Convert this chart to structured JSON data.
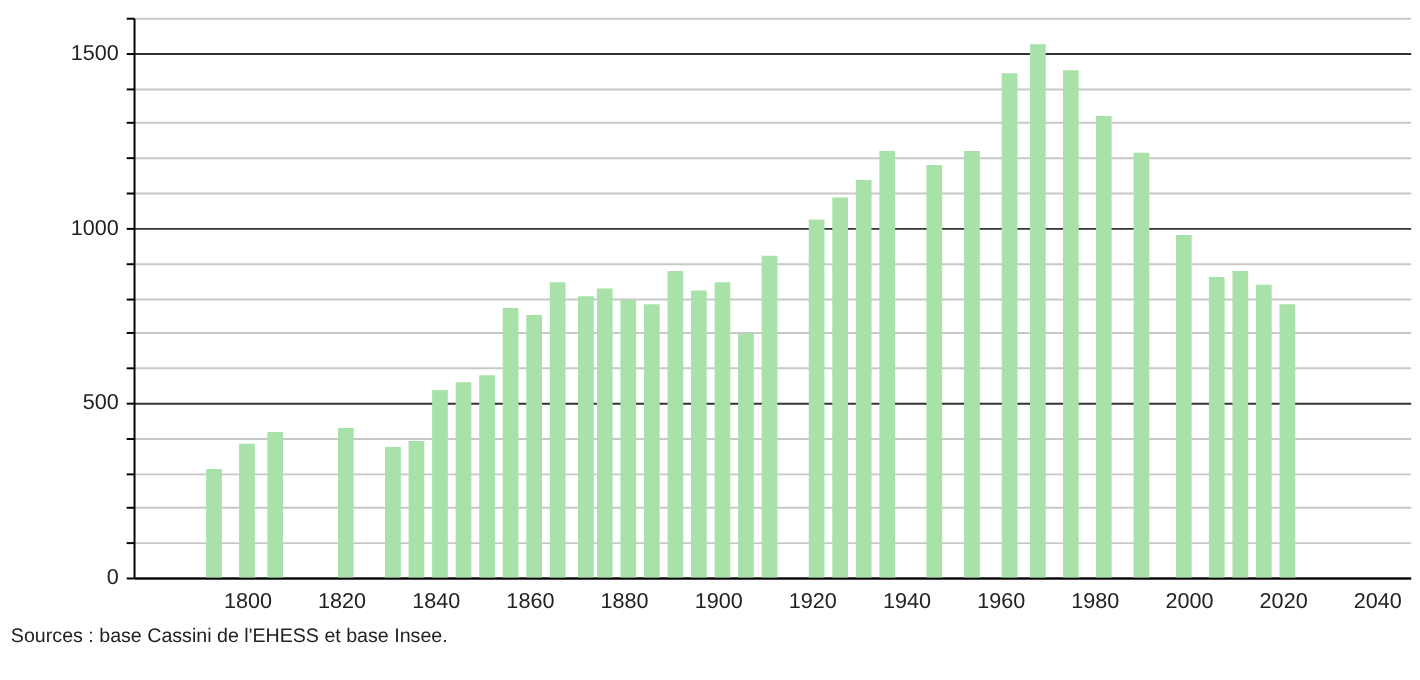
{
  "chart_data": {
    "type": "bar",
    "color": "#a8e2a8",
    "x": [
      1793,
      1800,
      1806,
      1821,
      1831,
      1836,
      1841,
      1846,
      1851,
      1856,
      1861,
      1866,
      1872,
      1876,
      1881,
      1886,
      1891,
      1896,
      1901,
      1906,
      1911,
      1921,
      1926,
      1931,
      1936,
      1946,
      1954,
      1962,
      1968,
      1975,
      1982,
      1990,
      1999,
      2006,
      2011,
      2016,
      2021
    ],
    "values": [
      310,
      382,
      416,
      427,
      373,
      390,
      536,
      558,
      578,
      770,
      750,
      844,
      804,
      826,
      793,
      781,
      876,
      820,
      844,
      698,
      920,
      1023,
      1086,
      1136,
      1219,
      1179,
      1219,
      1441,
      1524,
      1450,
      1319,
      1214,
      979,
      859,
      876,
      837,
      781
    ],
    "xlim": [
      1778,
      2045
    ],
    "xticks": [
      1800,
      1820,
      1840,
      1860,
      1880,
      1900,
      1920,
      1940,
      1960,
      1980,
      2000,
      2020,
      2040
    ],
    "ylim": [
      0,
      1600
    ],
    "yticks": [
      0,
      {
        "value": 100,
        "label": null
      },
      {
        "value": 200,
        "label": null
      },
      {
        "value": 300,
        "label": null
      },
      {
        "value": 400,
        "label": null
      },
      500,
      {
        "value": 600,
        "label": null
      },
      {
        "value": 700,
        "label": null
      },
      {
        "value": 800,
        "label": null
      },
      {
        "value": 900,
        "label": null
      },
      1000,
      {
        "value": 1100,
        "label": null
      },
      {
        "value": 1200,
        "label": null
      },
      {
        "value": 1300,
        "label": null
      },
      {
        "value": 1400,
        "label": null
      },
      1500,
      {
        "value": 1600,
        "label": null
      }
    ],
    "grid": "y",
    "annotations": [
      "Sources : base Cassini de l'EHESS et base Insee."
    ]
  }
}
